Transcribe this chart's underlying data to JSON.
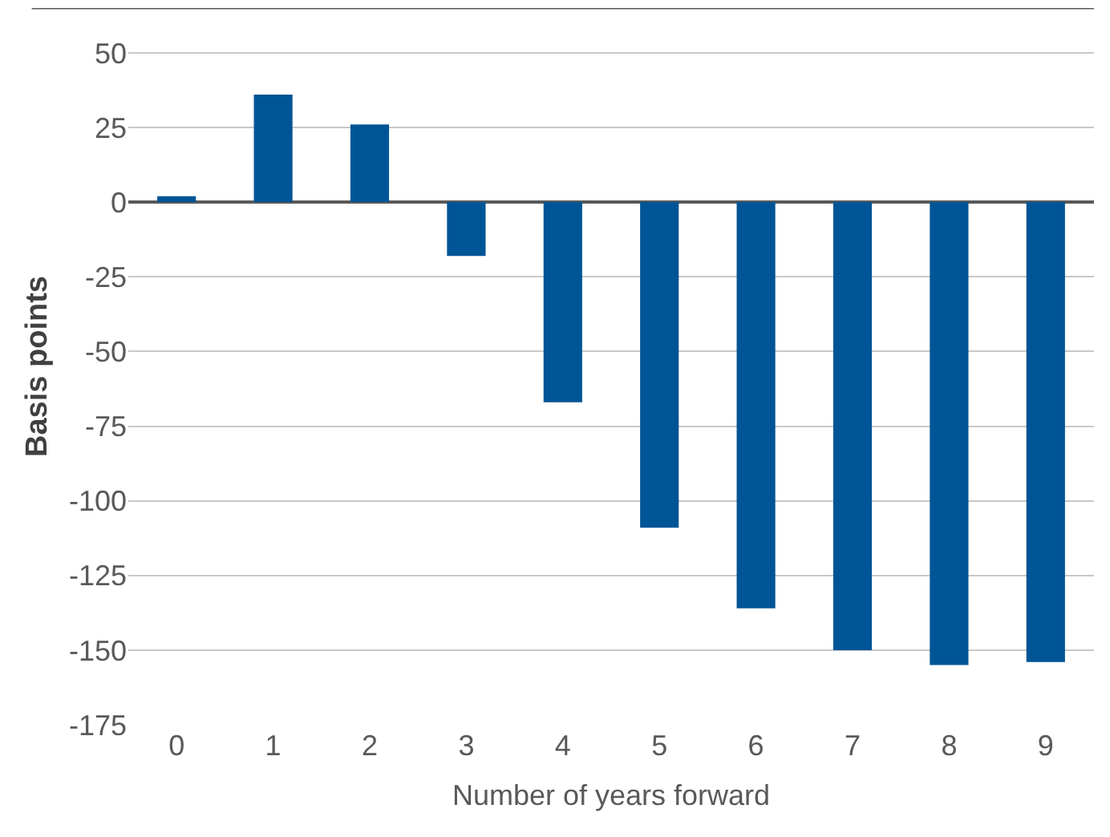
{
  "chart_data": {
    "type": "bar",
    "xlabel": "Number of years forward",
    "ylabel": "Basis points",
    "categories": [
      "0",
      "1",
      "2",
      "3",
      "4",
      "5",
      "6",
      "7",
      "8",
      "9"
    ],
    "values": [
      2,
      36,
      26,
      -18,
      -67,
      -109,
      -136,
      -150,
      -155,
      -154
    ],
    "color": "#005596",
    "ylim": [
      -175,
      65
    ],
    "yticks": [
      -175,
      -150,
      -125,
      -100,
      -75,
      -50,
      -25,
      0,
      25,
      50
    ],
    "grid": "y",
    "legend": false
  }
}
